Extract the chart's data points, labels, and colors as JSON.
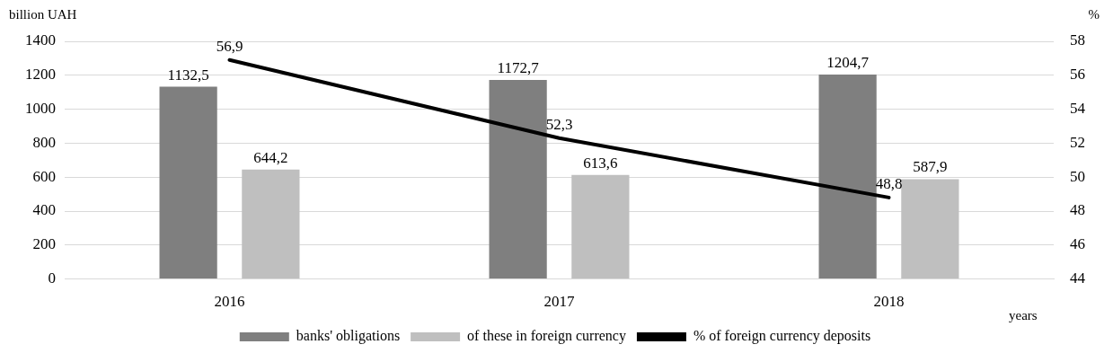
{
  "chart_data": {
    "type": "bar",
    "ylabel": "billion UAH",
    "y2label": "%",
    "xlabel": "years",
    "categories": [
      "2016",
      "2017",
      "2018"
    ],
    "series": [
      {
        "name": "banks' obligations",
        "color": "#7f7f7f",
        "values": [
          1132.5,
          1172.7,
          1204.7
        ],
        "value_labels": [
          "1132,5",
          "1172,7",
          "1204,7"
        ]
      },
      {
        "name": "of these in foreign currency",
        "color": "#bfbfbf",
        "values": [
          644.2,
          613.6,
          587.9
        ],
        "value_labels": [
          "644,2",
          "613,6",
          "587,9"
        ]
      },
      {
        "name": "% of foreign currency deposits",
        "type": "line",
        "axis": "y2",
        "color": "#000000",
        "values": [
          56.9,
          52.3,
          48.8
        ],
        "value_labels": [
          "56,9",
          "52,3",
          "48,8"
        ],
        "marker": "none",
        "line_style": "solid"
      }
    ],
    "ylim": [
      0,
      1400
    ],
    "yticks": [
      0,
      200,
      400,
      600,
      800,
      1000,
      1200,
      1400
    ],
    "y2lim": [
      44,
      58
    ],
    "y2ticks": [
      44,
      46,
      48,
      50,
      52,
      54,
      56,
      58
    ],
    "grid": "y",
    "legend": "bottom"
  }
}
